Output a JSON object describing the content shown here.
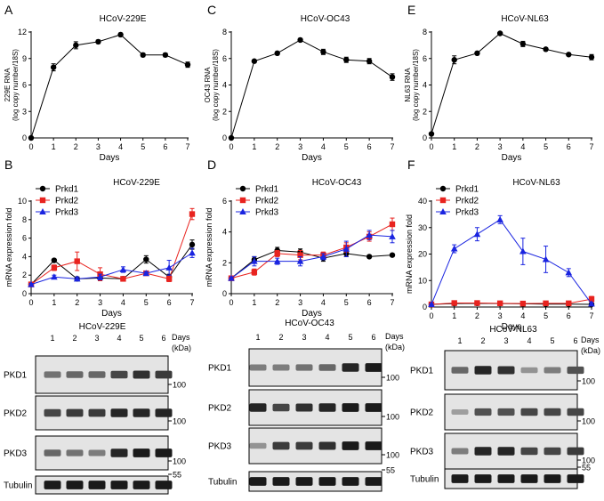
{
  "panel_letters": [
    "A",
    "B",
    "C",
    "D",
    "E",
    "F"
  ],
  "chart_data": [
    {
      "id": "A",
      "type": "line",
      "title": "HCoV-229E",
      "xlabel": "Days",
      "ylabel": [
        "229E RNA",
        "(log copy number/18S)"
      ],
      "x": [
        0,
        1,
        2,
        3,
        4,
        5,
        6,
        7
      ],
      "xlim": [
        0,
        7
      ],
      "ylim": [
        0,
        12
      ],
      "yticks": [
        0,
        3,
        6,
        9,
        12
      ],
      "series": [
        {
          "name": "229E RNA",
          "color": "#000000",
          "marker": "circle",
          "values": [
            0,
            8.0,
            10.5,
            10.9,
            11.7,
            9.4,
            9.4,
            8.3
          ],
          "errors": [
            0,
            0.4,
            0.4,
            0.2,
            0.2,
            0.2,
            0.2,
            0.3
          ]
        }
      ]
    },
    {
      "id": "C",
      "type": "line",
      "title": "HCoV-OC43",
      "xlabel": "Days",
      "ylabel": [
        "OC43 RNA",
        "(log copy number/18S)"
      ],
      "x": [
        0,
        1,
        2,
        3,
        4,
        5,
        6,
        7
      ],
      "xlim": [
        0,
        7
      ],
      "ylim": [
        0,
        8
      ],
      "yticks": [
        0,
        2,
        4,
        6,
        8
      ],
      "series": [
        {
          "name": "OC43 RNA",
          "color": "#000000",
          "marker": "circle",
          "values": [
            0,
            5.8,
            6.4,
            7.4,
            6.5,
            5.9,
            5.8,
            4.6
          ],
          "errors": [
            0,
            0.1,
            0.1,
            0.1,
            0.2,
            0.2,
            0.2,
            0.25
          ]
        }
      ]
    },
    {
      "id": "E",
      "type": "line",
      "title": "HCoV-NL63",
      "xlabel": "Days",
      "ylabel": [
        "NL63 RNA",
        "(log copy number/18S)"
      ],
      "x": [
        0,
        1,
        2,
        3,
        4,
        5,
        6,
        7
      ],
      "xlim": [
        0,
        7
      ],
      "ylim": [
        0,
        8
      ],
      "yticks": [
        0,
        2,
        4,
        6,
        8
      ],
      "series": [
        {
          "name": "NL63 RNA",
          "color": "#000000",
          "marker": "circle",
          "values": [
            0.3,
            5.9,
            6.4,
            7.9,
            7.1,
            6.7,
            6.3,
            6.1
          ],
          "errors": [
            0.1,
            0.3,
            0.1,
            0.1,
            0.2,
            0.1,
            0.1,
            0.2
          ]
        }
      ]
    },
    {
      "id": "B",
      "type": "line",
      "title": "HCoV-229E",
      "xlabel": "Days",
      "ylabel": [
        "mRNA expression fold"
      ],
      "x": [
        0,
        1,
        2,
        3,
        4,
        5,
        6,
        7
      ],
      "xlim": [
        0,
        7
      ],
      "ylim": [
        0,
        10
      ],
      "yticks": [
        0,
        2,
        4,
        6,
        8,
        10
      ],
      "series": [
        {
          "name": "Prkd1",
          "color": "#000000",
          "marker": "circle",
          "values": [
            1.0,
            3.6,
            1.6,
            1.7,
            1.6,
            3.7,
            1.8,
            5.3
          ],
          "errors": [
            0.1,
            0.1,
            0.2,
            0.3,
            0.2,
            0.4,
            0.3,
            0.5
          ]
        },
        {
          "name": "Prkd2",
          "color": "#e8231f",
          "marker": "square",
          "values": [
            1.0,
            2.8,
            3.5,
            2.1,
            1.6,
            2.2,
            1.6,
            8.6
          ],
          "errors": [
            0.1,
            0.3,
            1.0,
            0.7,
            0.2,
            0.2,
            0.3,
            0.6
          ]
        },
        {
          "name": "Prkd3",
          "color": "#1a24e0",
          "marker": "triangle",
          "values": [
            1.0,
            1.8,
            1.6,
            1.8,
            2.6,
            2.2,
            2.8,
            4.4
          ],
          "errors": [
            0.1,
            0.2,
            0.2,
            0.3,
            0.3,
            0.2,
            0.8,
            0.5
          ]
        }
      ]
    },
    {
      "id": "D",
      "type": "line",
      "title": "HCoV-OC43",
      "xlabel": "Days",
      "ylabel": [
        "mRNA expression fold"
      ],
      "x": [
        0,
        1,
        2,
        3,
        4,
        5,
        6,
        7
      ],
      "xlim": [
        0,
        7
      ],
      "ylim": [
        0,
        6
      ],
      "yticks": [
        0,
        2,
        4,
        6
      ],
      "series": [
        {
          "name": "Prkd1",
          "color": "#000000",
          "marker": "circle",
          "values": [
            1.0,
            2.2,
            2.8,
            2.7,
            2.3,
            2.6,
            2.4,
            2.5
          ],
          "errors": [
            0.05,
            0.2,
            0.2,
            0.2,
            0.2,
            0.2,
            0.05,
            0.1
          ]
        },
        {
          "name": "Prkd2",
          "color": "#e8231f",
          "marker": "square",
          "values": [
            1.0,
            1.4,
            2.6,
            2.5,
            2.5,
            3.0,
            3.7,
            4.5
          ],
          "errors": [
            0.05,
            0.2,
            0.2,
            0.3,
            0.2,
            0.3,
            0.3,
            0.4
          ]
        },
        {
          "name": "Prkd3",
          "color": "#1a24e0",
          "marker": "triangle",
          "values": [
            1.0,
            2.1,
            2.1,
            2.1,
            2.4,
            2.9,
            3.8,
            3.7
          ],
          "errors": [
            0.05,
            0.3,
            0.2,
            0.3,
            0.2,
            0.5,
            0.3,
            0.4
          ]
        }
      ]
    },
    {
      "id": "F",
      "type": "line",
      "title": "HCoV-NL63",
      "xlabel": "Days",
      "ylabel": [
        "mRNA expression fold"
      ],
      "x": [
        0,
        1,
        2,
        3,
        4,
        5,
        6,
        7
      ],
      "xlim": [
        0,
        7
      ],
      "ylim": [
        0,
        40
      ],
      "yticks": [
        0,
        10,
        20,
        30,
        40
      ],
      "series": [
        {
          "name": "Prkd1",
          "color": "#000000",
          "marker": "circle",
          "values": [
            1.0,
            1.3,
            1.4,
            1.3,
            1.2,
            1.1,
            1.1,
            1.0
          ],
          "errors": [
            0.1,
            0.1,
            0.1,
            0.1,
            0.1,
            0.1,
            0.1,
            0.1
          ]
        },
        {
          "name": "Prkd2",
          "color": "#e8231f",
          "marker": "square",
          "values": [
            1.0,
            1.5,
            1.5,
            1.4,
            1.3,
            1.4,
            1.4,
            3.0
          ],
          "errors": [
            0.1,
            0.2,
            0.2,
            0.2,
            0.2,
            0.2,
            0.2,
            1.0
          ]
        },
        {
          "name": "Prkd3",
          "color": "#1a24e0",
          "marker": "triangle",
          "values": [
            1.0,
            22.0,
            27.5,
            33.0,
            21.0,
            18.0,
            13.0,
            1.2
          ],
          "errors": [
            0.2,
            1.5,
            2.5,
            1.5,
            5.0,
            5.0,
            1.5,
            0.5
          ]
        }
      ]
    }
  ],
  "blots": [
    {
      "title": "HCoV-229E",
      "lanes": [
        "1",
        "2",
        "3",
        "4",
        "5",
        "6"
      ],
      "days_label": "Days",
      "kda_label": "(kDa)",
      "rows": [
        {
          "name": "PKD1",
          "marker": "100",
          "intensity": [
            0.55,
            0.6,
            0.6,
            0.75,
            0.85,
            0.8
          ]
        },
        {
          "name": "PKD2",
          "marker": "100",
          "intensity": [
            0.75,
            0.8,
            0.8,
            0.9,
            0.9,
            0.9
          ]
        },
        {
          "name": "PKD3",
          "marker": "100",
          "intensity": [
            0.6,
            0.55,
            0.5,
            0.9,
            0.95,
            0.95
          ]
        },
        {
          "name": "Tubulin",
          "marker": "55",
          "intensity": [
            0.95,
            0.95,
            0.95,
            0.95,
            0.95,
            0.95
          ]
        }
      ]
    },
    {
      "title": "HCoV-OC43",
      "lanes": [
        "1",
        "2",
        "3",
        "4",
        "5",
        "6"
      ],
      "days_label": "Days",
      "kda_label": "(kDa)",
      "rows": [
        {
          "name": "PKD1",
          "marker": "100",
          "intensity": [
            0.5,
            0.5,
            0.55,
            0.6,
            0.9,
            0.95
          ]
        },
        {
          "name": "PKD2",
          "marker": "100",
          "intensity": [
            0.9,
            0.75,
            0.85,
            0.9,
            0.95,
            0.95
          ]
        },
        {
          "name": "PKD3",
          "marker": "100",
          "intensity": [
            0.4,
            0.8,
            0.8,
            0.85,
            0.95,
            0.95
          ]
        },
        {
          "name": "Tubulin",
          "marker": "55",
          "intensity": [
            0.95,
            0.95,
            0.95,
            0.95,
            0.95,
            0.95
          ]
        }
      ]
    },
    {
      "title": "HCoV-NL63",
      "lanes": [
        "1",
        "2",
        "3",
        "4",
        "5",
        "6"
      ],
      "days_label": "Days",
      "kda_label": "(kDa)",
      "rows": [
        {
          "name": "PKD1",
          "marker": "100",
          "intensity": [
            0.6,
            0.9,
            0.85,
            0.4,
            0.5,
            0.7
          ]
        },
        {
          "name": "PKD2",
          "marker": "100",
          "intensity": [
            0.35,
            0.7,
            0.7,
            0.75,
            0.75,
            0.75
          ]
        },
        {
          "name": "PKD3",
          "marker": "100",
          "intensity": [
            0.5,
            0.9,
            0.9,
            0.75,
            0.75,
            0.8
          ]
        },
        {
          "name": "Tubulin",
          "marker": "55",
          "intensity": [
            0.95,
            0.95,
            0.95,
            0.95,
            0.95,
            0.95
          ]
        }
      ]
    }
  ]
}
